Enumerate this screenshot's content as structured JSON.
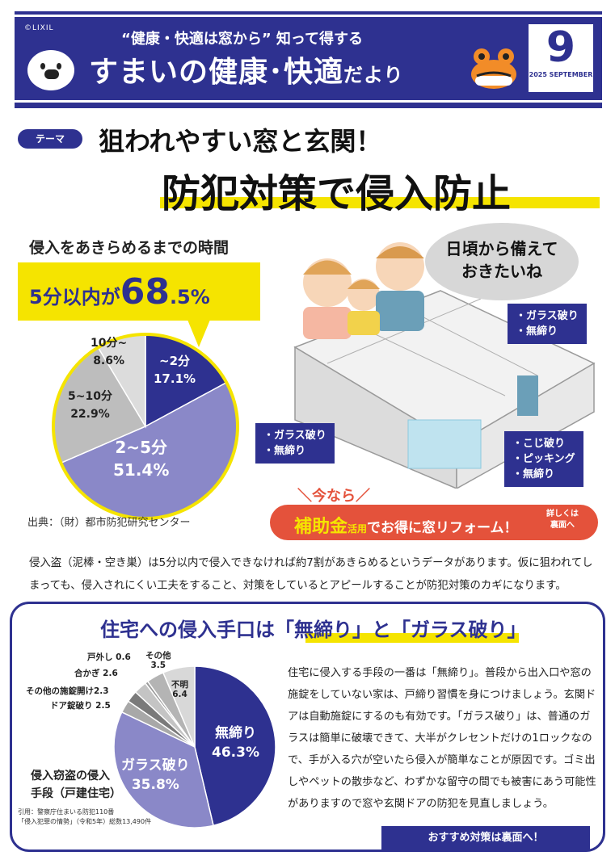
{
  "header": {
    "brand": "©LIXIL",
    "tagline": "“健康・快適は窓から” 知って得する",
    "title_main": "すまいの健康･快適",
    "title_small": "だより",
    "issue_number": "9",
    "issue_date": "2025 SEPTEMBER",
    "band_color": "#2e3190"
  },
  "theme": {
    "badge": "テーマ",
    "title_line1": "狙われやすい窓と玄関！",
    "title_line2": "防犯対策で侵入防止"
  },
  "time_stats": {
    "label": "侵入をあきらめるまでの時間",
    "highlight_prefix": "5分以内が",
    "highlight_value": "68",
    "highlight_decimal": ".5%",
    "source": "出典：（財）都市防犯研究センター"
  },
  "chart_data": [
    {
      "type": "pie",
      "title": "侵入をあきらめるまでの時間",
      "slices": [
        {
          "label": "~2分",
          "value": 17.1,
          "display": "17.1%",
          "color": "#2e3190"
        },
        {
          "label": "2~5分",
          "value": 51.4,
          "display": "51.4%",
          "color": "#8a88c8"
        },
        {
          "label": "5~10分",
          "value": 22.9,
          "display": "22.9%",
          "color": "#bdbdbd"
        },
        {
          "label": "10分~",
          "value": 8.6,
          "display": "8.6%",
          "color": "#dcdcdc"
        }
      ]
    },
    {
      "type": "pie",
      "title": "侵入窃盗の侵入手段（戸建住宅）",
      "slices": [
        {
          "label": "無締り",
          "value": 46.3,
          "display": "46.3%",
          "color": "#2e3190"
        },
        {
          "label": "ガラス破り",
          "value": 35.8,
          "display": "35.8%",
          "color": "#8a88c8"
        },
        {
          "label": "ドア錠破り",
          "value": 2.5,
          "display": "2.5",
          "color": "#a8a8a8"
        },
        {
          "label": "その他の施錠開け",
          "value": 2.3,
          "display": "2.3",
          "color": "#7a7a7a"
        },
        {
          "label": "合かぎ",
          "value": 2.6,
          "display": "2.6",
          "color": "#c4c4c4"
        },
        {
          "label": "戸外し",
          "value": 0.6,
          "display": "0.6",
          "color": "#9a9a9a"
        },
        {
          "label": "その他",
          "value": 3.5,
          "display": "3.5",
          "color": "#b4b4b4"
        },
        {
          "label": "不明",
          "value": 6.4,
          "display": "6.4",
          "color": "#d8d8d8"
        }
      ]
    }
  ],
  "illustration": {
    "speech": "日頃から備えて\nおきたいね",
    "tag_top": "・ガラス破り\n・無締り",
    "tag_left": "・ガラス破り\n・無締り",
    "tag_right": "・こじ破り\n・ピッキング\n・無締り"
  },
  "cta": {
    "now": "＼今なら／",
    "subsidy": "補助金",
    "use": "活用",
    "rest": "でお得に窓リフォーム！",
    "side": "詳しくは\n裏面へ"
  },
  "paragraph1": "侵入盗（泥棒・空き巣）は5分以内で侵入できなければ約7割があきらめるというデータがあります。仮に狙われてしまっても、侵入されにくい工夫をすること、対策をしているとアピールすることが防犯対策のカギになります。",
  "methods": {
    "title": "住宅への侵入手口は「無締り」と「ガラス破り」",
    "chart_title": "侵入窃盗の侵入\n手段（戸建住宅）",
    "source": "引用：警察庁住まいる防犯110番\n「侵入犯罪の情勢」（令和5年）総数13,490件",
    "paragraph": "住宅に侵入する手段の一番は「無締り」。普段から出入口や窓の施錠をしていない家は、戸締り習慣を身につけましょう。玄関ドアは自動施錠にするのも有効です。「ガラス破り」は、普通のガラスは簡単に破壊できて、大半がクレセントだけの1ロックなので、手が入る穴が空いたら侵入が簡単なことが原因です。ゴミ出しやペットの散歩など、わずかな留守の間でも被害にあう可能性がありますので窓や玄関ドアの防犯を見直しましょう。",
    "recommend": "おすすめ対策は裏面へ！"
  }
}
